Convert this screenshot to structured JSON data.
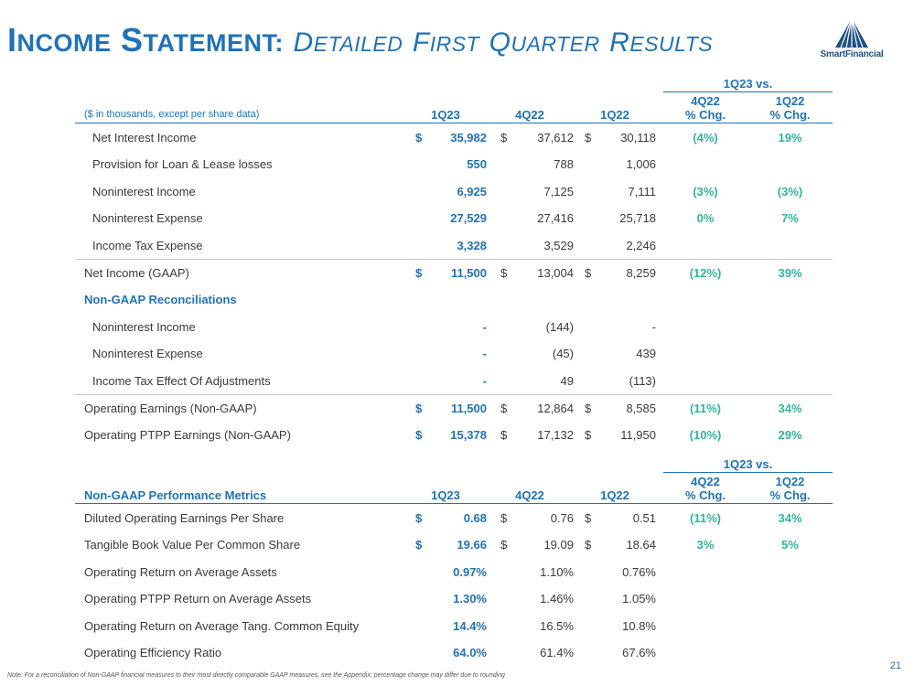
{
  "header": {
    "title_main_first": "I",
    "title_main_rest": "NCOME",
    "title_main_first2": "S",
    "title_main_rest2": "TATEMENT:",
    "title_sub_first": "D",
    "title_sub_rest": "ETAILED",
    "title_sub_first2": "F",
    "title_sub_rest2": "IRST",
    "title_sub_first3": "Q",
    "title_sub_rest3": "UARTER",
    "title_sub_first4": "R",
    "title_sub_rest4": "ESULTS",
    "logo_text": "SmartFinancial"
  },
  "income_table": {
    "group_header": "1Q23 vs.",
    "label_header": "($ in thousands, except per share data)",
    "col1": "1Q23",
    "col2": "4Q22",
    "col3": "1Q22",
    "col4_line1": "4Q22",
    "col4_line2": "% Chg.",
    "col5_line1": "1Q22",
    "col5_line2": "% Chg.",
    "rows": [
      {
        "label": "Net Interest Income",
        "d1": "$",
        "v1": "35,982",
        "d2": "$",
        "v2": "37,612",
        "d3": "$",
        "v3": "30,118",
        "p1": "(4%)",
        "p2": "19%"
      },
      {
        "label": "Provision for Loan & Lease losses",
        "d1": "",
        "v1": "550",
        "d2": "",
        "v2": "788",
        "d3": "",
        "v3": "1,006",
        "p1": "",
        "p2": ""
      },
      {
        "label": "Noninterest Income",
        "d1": "",
        "v1": "6,925",
        "d2": "",
        "v2": "7,125",
        "d3": "",
        "v3": "7,111",
        "p1": "(3%)",
        "p2": "(3%)"
      },
      {
        "label": "Noninterest Expense",
        "d1": "",
        "v1": "27,529",
        "d2": "",
        "v2": "27,416",
        "d3": "",
        "v3": "25,718",
        "p1": "0%",
        "p2": "7%"
      },
      {
        "label": "Income Tax Expense",
        "d1": "",
        "v1": "3,328",
        "d2": "",
        "v2": "3,529",
        "d3": "",
        "v3": "2,246",
        "p1": "",
        "p2": ""
      },
      {
        "label": "Net Income (GAAP)",
        "d1": "$",
        "v1": "11,500",
        "d2": "$",
        "v2": "13,004",
        "d3": "$",
        "v3": "8,259",
        "p1": "(12%)",
        "p2": "39%"
      },
      {
        "label": "Non-GAAP Reconciliations",
        "d1": "",
        "v1": "",
        "d2": "",
        "v2": "",
        "d3": "",
        "v3": "",
        "p1": "",
        "p2": ""
      },
      {
        "label": "Noninterest Income",
        "d1": "",
        "v1": "-",
        "d2": "",
        "v2": "(144)",
        "d3": "",
        "v3": "-",
        "p1": "",
        "p2": ""
      },
      {
        "label": "Noninterest Expense",
        "d1": "",
        "v1": "-",
        "d2": "",
        "v2": "(45)",
        "d3": "",
        "v3": "439",
        "p1": "",
        "p2": ""
      },
      {
        "label": "Income Tax Effect Of Adjustments",
        "d1": "",
        "v1": "-",
        "d2": "",
        "v2": "49",
        "d3": "",
        "v3": "(113)",
        "p1": "",
        "p2": ""
      },
      {
        "label": "Operating Earnings (Non-GAAP)",
        "d1": "$",
        "v1": "11,500",
        "d2": "$",
        "v2": "12,864",
        "d3": "$",
        "v3": "8,585",
        "p1": "(11%)",
        "p2": "34%"
      },
      {
        "label": "Operating PTPP Earnings (Non-GAAP)",
        "d1": "$",
        "v1": "15,378",
        "d2": "$",
        "v2": "17,132",
        "d3": "$",
        "v3": "11,950",
        "p1": "(10%)",
        "p2": "29%"
      }
    ]
  },
  "metrics_table": {
    "group_header": "1Q23 vs.",
    "label_header": "Non-GAAP Performance Metrics",
    "col1": "1Q23",
    "col2": "4Q22",
    "col3": "1Q22",
    "col4_line1": "4Q22",
    "col4_line2": "% Chg.",
    "col5_line1": "1Q22",
    "col5_line2": "% Chg.",
    "rows": [
      {
        "label": "Diluted Operating Earnings Per Share",
        "d1": "$",
        "v1": "0.68",
        "d2": "$",
        "v2": "0.76",
        "d3": "$",
        "v3": "0.51",
        "p1": "(11%)",
        "p2": "34%"
      },
      {
        "label": "Tangible Book Value Per Common Share",
        "d1": "$",
        "v1": "19.66",
        "d2": "$",
        "v2": "19.09",
        "d3": "$",
        "v3": "18.64",
        "p1": "3%",
        "p2": "5%"
      },
      {
        "label": "Operating Return on Average Assets",
        "d1": "",
        "v1": "0.97%",
        "d2": "",
        "v2": "1.10%",
        "d3": "",
        "v3": "0.76%",
        "p1": "",
        "p2": ""
      },
      {
        "label": "Operating PTPP Return on Average Assets",
        "d1": "",
        "v1": "1.30%",
        "d2": "",
        "v2": "1.46%",
        "d3": "",
        "v3": "1.05%",
        "p1": "",
        "p2": ""
      },
      {
        "label": "Operating Return on Average Tang. Common Equity",
        "d1": "",
        "v1": "14.4%",
        "d2": "",
        "v2": "16.5%",
        "d3": "",
        "v3": "10.8%",
        "p1": "",
        "p2": ""
      },
      {
        "label": "Operating Efficiency Ratio",
        "d1": "",
        "v1": "64.0%",
        "d2": "",
        "v2": "61.4%",
        "d3": "",
        "v3": "67.6%",
        "p1": "",
        "p2": ""
      }
    ]
  },
  "footer": {
    "note": "Note: For a reconciliation of Non-GAAP financial measures to their most directly comparable GAAP measures, see the Appendix; percentage change may differ due to rounding",
    "page_number": "21"
  },
  "colors": {
    "title_blue": "#1f72b8",
    "percent_green": "#2fb59a",
    "logo_navy": "#1d4f86"
  }
}
